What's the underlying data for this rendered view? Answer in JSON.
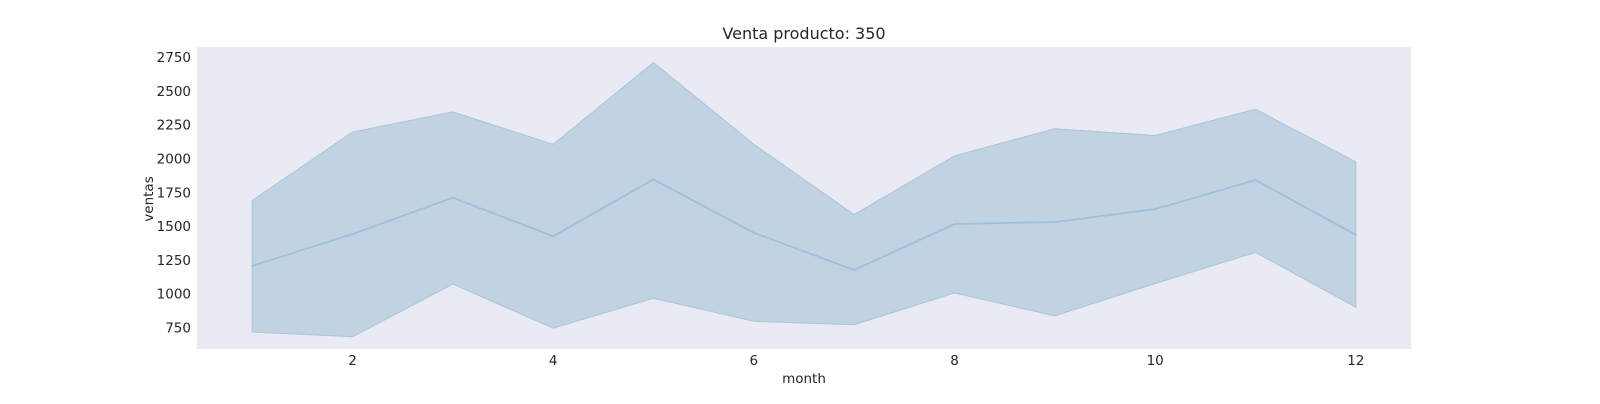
{
  "chart_data": {
    "type": "line",
    "title": "Venta producto: 350",
    "xlabel": "month",
    "ylabel": "ventas",
    "x": [
      1,
      2,
      3,
      4,
      5,
      6,
      7,
      8,
      9,
      10,
      11,
      12
    ],
    "series": [
      {
        "values": [
          1205,
          1440,
          1710,
          1425,
          1845,
          1450,
          1175,
          1515,
          1530,
          1625,
          1840,
          1435
        ],
        "ci_upper": [
          1690,
          2195,
          2345,
          2105,
          2710,
          2105,
          1585,
          2020,
          2220,
          2170,
          2365,
          1975
        ],
        "ci_lower": [
          715,
          680,
          1070,
          745,
          965,
          795,
          770,
          1005,
          835,
          1075,
          1305,
          900
        ]
      }
    ],
    "xlim": [
      0.45,
      12.55
    ],
    "ylim": [
      590,
      2825
    ],
    "xticks": [
      2,
      4,
      6,
      8,
      10,
      12
    ],
    "yticks": [
      750,
      1000,
      1250,
      1500,
      1750,
      2000,
      2250,
      2500,
      2750
    ],
    "grid": false,
    "colors": {
      "plot_background": "#eaeaf2",
      "line": "#9fbfdc",
      "band_fill": "#c1d2e3",
      "band_edge": "#a9c4dd"
    }
  }
}
